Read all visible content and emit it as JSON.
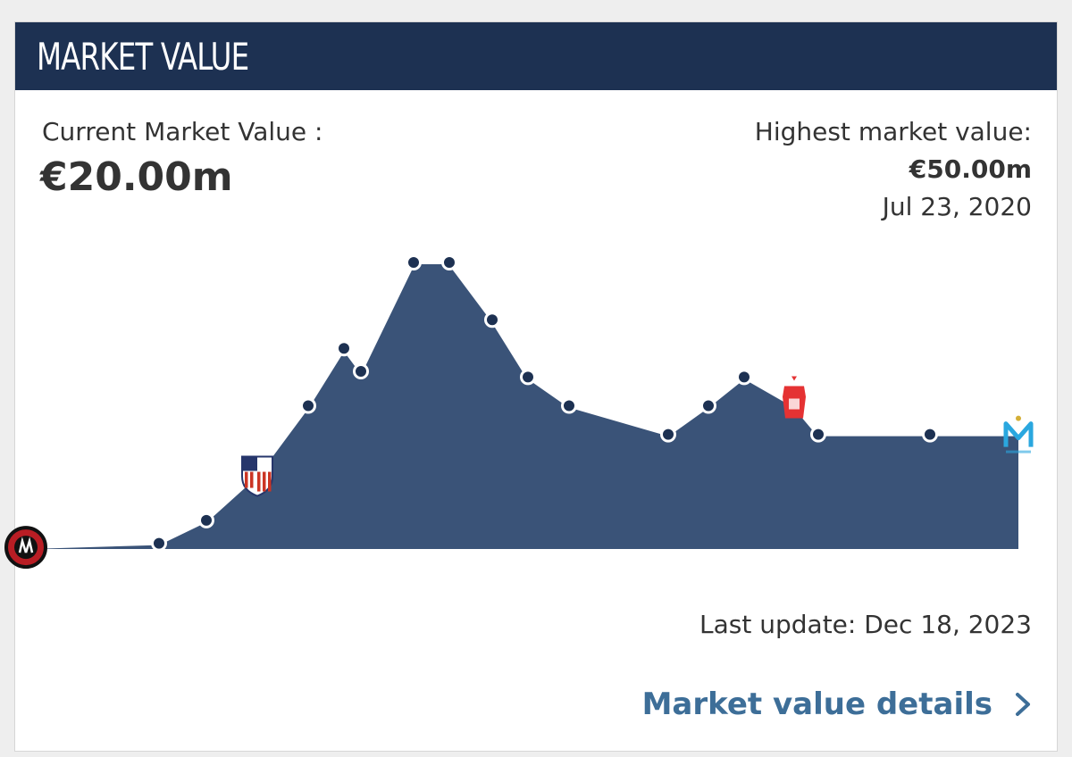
{
  "header": {
    "title": "MARKET VALUE"
  },
  "current": {
    "label": "Current Market Value :",
    "value": "€20.00m"
  },
  "highest": {
    "label": "Highest market value:",
    "value": "€50.00m",
    "date": "Jul 23, 2020"
  },
  "footer": {
    "last_update": "Last update: Dec 18, 2023",
    "details_link": "Market value details"
  },
  "colors": {
    "header_bg": "#1d3152",
    "area_fill": "#3a5378",
    "line": "#ffffff",
    "marker": "#1d3152",
    "link": "#3d6e98"
  },
  "chart_data": {
    "type": "area",
    "unit": "€m",
    "ylim": [
      0,
      50
    ],
    "grid": false,
    "points": [
      {
        "v": 0.3,
        "marker": "point"
      },
      {
        "v": 1.0,
        "marker": "point"
      },
      {
        "v": 5.0,
        "marker": "point"
      },
      {
        "v": 13.0,
        "marker": "club-logo-atletico-madrid"
      },
      {
        "v": 25.0,
        "marker": "point"
      },
      {
        "v": 35.0,
        "marker": "point"
      },
      {
        "v": 31.0,
        "marker": "point"
      },
      {
        "v": 50.0,
        "marker": "point"
      },
      {
        "v": 50.0,
        "marker": "point"
      },
      {
        "v": 40.0,
        "marker": "point"
      },
      {
        "v": 30.0,
        "marker": "point"
      },
      {
        "v": 25.0,
        "marker": "point"
      },
      {
        "v": 20.0,
        "marker": "point"
      },
      {
        "v": 25.0,
        "marker": "point"
      },
      {
        "v": 30.0,
        "marker": "point"
      },
      {
        "v": 25.0,
        "marker": "club-logo-nottingham-forest"
      },
      {
        "v": 20.0,
        "marker": "point"
      },
      {
        "v": 20.0,
        "marker": "point"
      },
      {
        "v": 20.0,
        "marker": "club-logo-olympique-marseille"
      }
    ]
  }
}
